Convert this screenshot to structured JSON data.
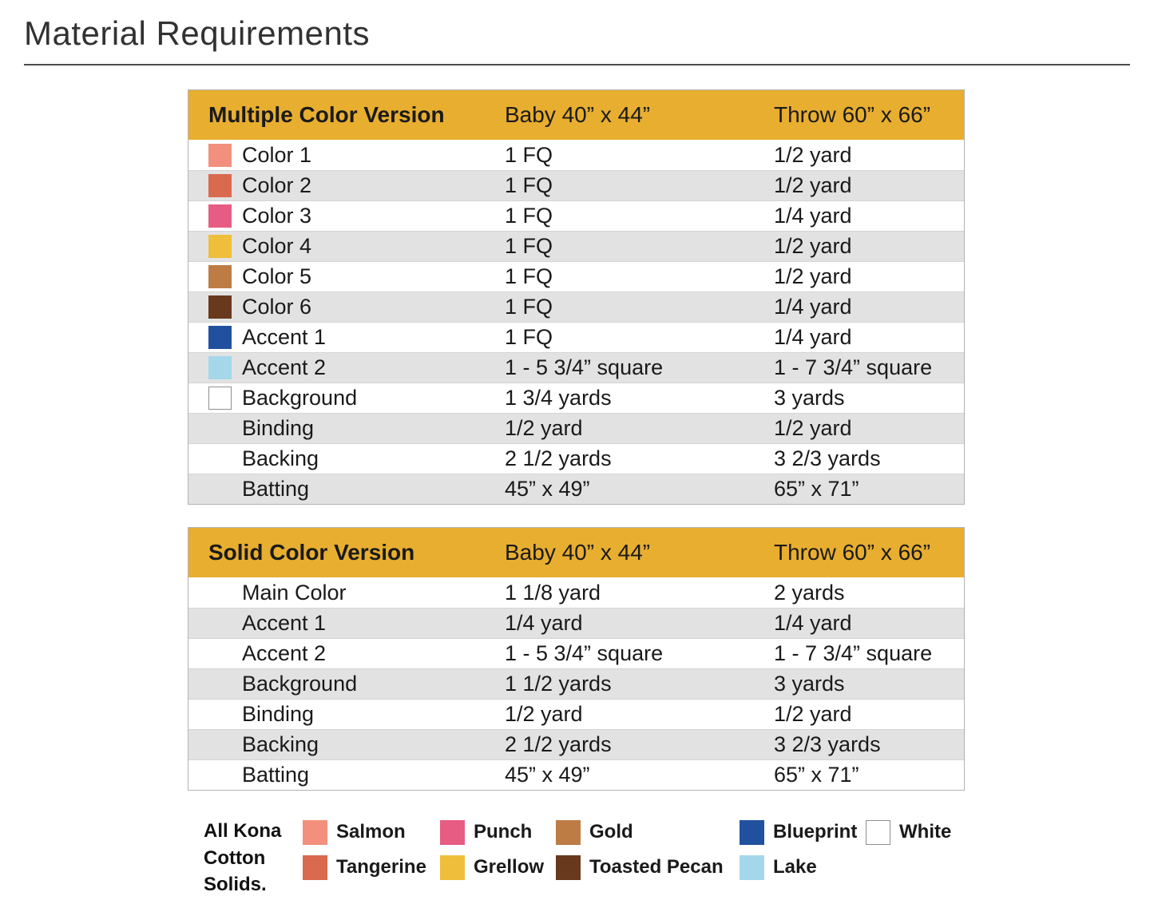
{
  "page": {
    "title": "Material Requirements"
  },
  "colors": {
    "header_gold": "#E8AE2F",
    "row_stripe": "#E2E2E2",
    "salmon": "#F2907D",
    "tangerine": "#D9694F",
    "punch": "#E65C82",
    "grellow": "#EFBF3B",
    "gold": "#BE7C45",
    "toasted_pecan": "#68391C",
    "blueprint": "#21519E",
    "lake": "#A5D7EB",
    "white": "#FFFFFF"
  },
  "tables": [
    {
      "header": {
        "name": "Multiple Color Version",
        "baby": "Baby 40” x 44”",
        "throw": "Throw 60” x 66”"
      },
      "rows": [
        {
          "swatch": "salmon",
          "label": "Color 1",
          "baby": "1 FQ",
          "throw": "1/2 yard"
        },
        {
          "swatch": "tangerine",
          "label": "Color 2",
          "baby": "1 FQ",
          "throw": "1/2 yard"
        },
        {
          "swatch": "punch",
          "label": "Color 3",
          "baby": "1 FQ",
          "throw": "1/4 yard"
        },
        {
          "swatch": "grellow",
          "label": "Color 4",
          "baby": "1 FQ",
          "throw": "1/2 yard"
        },
        {
          "swatch": "gold",
          "label": "Color 5",
          "baby": "1 FQ",
          "throw": "1/2 yard"
        },
        {
          "swatch": "toasted_pecan",
          "label": "Color 6",
          "baby": "1 FQ",
          "throw": "1/4 yard"
        },
        {
          "swatch": "blueprint",
          "label": "Accent 1",
          "baby": "1 FQ",
          "throw": "1/4 yard"
        },
        {
          "swatch": "lake",
          "label": "Accent 2",
          "baby": "1 - 5 3/4” square",
          "throw": "1 - 7 3/4” square"
        },
        {
          "swatch": "white",
          "label": "Background",
          "baby": "1 3/4 yards",
          "throw": "3 yards"
        },
        {
          "swatch": null,
          "label": "Binding",
          "baby": "1/2 yard",
          "throw": "1/2 yard"
        },
        {
          "swatch": null,
          "label": "Backing",
          "baby": "2 1/2 yards",
          "throw": "3 2/3 yards"
        },
        {
          "swatch": null,
          "label": "Batting",
          "baby": "45” x 49”",
          "throw": "65” x 71”"
        }
      ]
    },
    {
      "header": {
        "name": "Solid Color Version",
        "baby": "Baby 40” x 44”",
        "throw": "Throw 60” x 66”"
      },
      "rows": [
        {
          "swatch": null,
          "label": "Main Color",
          "baby": "1 1/8 yard",
          "throw": "2 yards"
        },
        {
          "swatch": null,
          "label": "Accent 1",
          "baby": "1/4 yard",
          "throw": "1/4 yard"
        },
        {
          "swatch": null,
          "label": "Accent 2",
          "baby": "1 - 5 3/4” square",
          "throw": "1 - 7 3/4” square"
        },
        {
          "swatch": null,
          "label": "Background",
          "baby": "1 1/2 yards",
          "throw": "3 yards"
        },
        {
          "swatch": null,
          "label": "Binding",
          "baby": "1/2 yard",
          "throw": "1/2 yard"
        },
        {
          "swatch": null,
          "label": "Backing",
          "baby": "2 1/2 yards",
          "throw": "3 2/3 yards"
        },
        {
          "swatch": null,
          "label": "Batting",
          "baby": "45” x 49”",
          "throw": "65” x 71”"
        }
      ]
    }
  ],
  "legend": {
    "note": "All Kona Cotton Solids.",
    "columns": [
      {
        "items": [
          {
            "key": "salmon",
            "label": "Salmon"
          },
          {
            "key": "tangerine",
            "label": "Tangerine"
          }
        ]
      },
      {
        "items": [
          {
            "key": "punch",
            "label": "Punch"
          },
          {
            "key": "grellow",
            "label": "Grellow"
          }
        ]
      },
      {
        "items": [
          {
            "key": "gold",
            "label": "Gold"
          },
          {
            "key": "toasted_pecan",
            "label": "Toasted Pecan"
          }
        ]
      },
      {
        "items": [
          {
            "key": "blueprint",
            "label": "Blueprint"
          },
          {
            "key": "lake",
            "label": "Lake"
          }
        ]
      },
      {
        "items": [
          {
            "key": "white",
            "label": "White"
          }
        ]
      }
    ]
  }
}
